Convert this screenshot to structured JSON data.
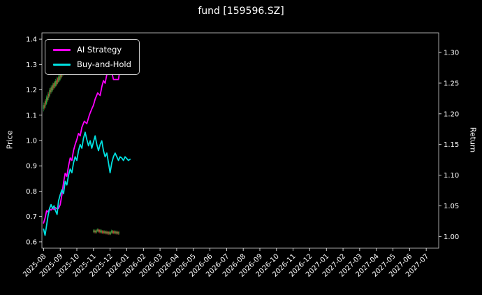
{
  "chart_data": {
    "type": "candlestick+line",
    "title": "fund [159596.SZ]",
    "background": "#000000",
    "spine_color": "#cfcfcf",
    "tick_color": "#ffffff",
    "legend_position": "upper-left",
    "axes": {
      "x": {
        "min": -0.1,
        "max": 23.75,
        "tick_values": [
          0,
          1,
          2,
          3,
          4,
          5,
          6,
          7,
          8,
          9,
          10,
          11,
          12,
          13,
          14,
          15,
          16,
          17,
          18,
          19,
          20,
          21,
          22,
          23
        ],
        "tick_labels": [
          "2025-08",
          "2025-09",
          "2025-10",
          "2025-11",
          "2025-12",
          "2026-01",
          "2026-02",
          "2026-03",
          "2026-04",
          "2026-05",
          "2026-06",
          "2026-07",
          "2026-08",
          "2026-09",
          "2026-10",
          "2026-11",
          "2026-12",
          "2027-01",
          "2027-02",
          "2027-03",
          "2027-04",
          "2027-05",
          "2027-06",
          "2027-07"
        ],
        "label_rotation_deg": 45
      },
      "left": {
        "label": "Price",
        "min": 0.575,
        "max": 1.425,
        "tick_values": [
          0.6,
          0.7,
          0.8,
          0.9,
          1.0,
          1.1,
          1.2,
          1.3,
          1.4
        ],
        "tick_labels": [
          "0.6",
          "0.7",
          "0.8",
          "0.9",
          "1.0",
          "1.1",
          "1.2",
          "1.3",
          "1.4"
        ]
      },
      "right": {
        "label": "Return",
        "min": 0.981,
        "max": 1.332,
        "tick_values": [
          1.0,
          1.05,
          1.1,
          1.15,
          1.2,
          1.25,
          1.3
        ],
        "tick_labels": [
          "1.00",
          "1.05",
          "1.10",
          "1.15",
          "1.20",
          "1.25",
          "1.30"
        ]
      }
    },
    "series": [
      {
        "name": "AI Strategy",
        "color": "#ff00ff",
        "axis": "right",
        "points": [
          [
            0,
            1.022
          ],
          [
            0.09,
            1.03
          ],
          [
            0.18,
            1.042
          ],
          [
            0.27,
            1.04
          ],
          [
            0.36,
            1.045
          ],
          [
            0.45,
            1.043
          ],
          [
            0.54,
            1.046
          ],
          [
            0.63,
            1.044
          ],
          [
            0.72,
            1.047
          ],
          [
            0.81,
            1.045
          ],
          [
            0.9,
            1.046
          ],
          [
            1.0,
            1.052
          ],
          [
            1.1,
            1.068
          ],
          [
            1.2,
            1.088
          ],
          [
            1.3,
            1.103
          ],
          [
            1.4,
            1.098
          ],
          [
            1.5,
            1.115
          ],
          [
            1.6,
            1.128
          ],
          [
            1.7,
            1.124
          ],
          [
            1.8,
            1.14
          ],
          [
            1.9,
            1.15
          ],
          [
            2.0,
            1.158
          ],
          [
            2.1,
            1.168
          ],
          [
            2.2,
            1.164
          ],
          [
            2.3,
            1.178
          ],
          [
            2.45,
            1.188
          ],
          [
            2.6,
            1.184
          ],
          [
            2.75,
            1.198
          ],
          [
            2.9,
            1.208
          ],
          [
            3.0,
            1.214
          ],
          [
            3.1,
            1.224
          ],
          [
            3.25,
            1.234
          ],
          [
            3.4,
            1.23
          ],
          [
            3.5,
            1.244
          ],
          [
            3.6,
            1.254
          ],
          [
            3.7,
            1.25
          ],
          [
            3.8,
            1.264
          ],
          [
            3.9,
            1.274
          ],
          [
            4.0,
            1.284
          ],
          [
            4.1,
            1.268
          ],
          [
            4.2,
            1.256
          ],
          [
            4.35,
            1.256
          ],
          [
            4.5,
            1.256
          ],
          [
            4.6,
            1.274
          ],
          [
            4.75,
            1.276
          ],
          [
            4.9,
            1.274
          ],
          [
            5.0,
            1.271
          ],
          [
            5.1,
            1.267
          ],
          [
            5.2,
            1.27
          ]
        ]
      },
      {
        "name": "Buy-and-Hold",
        "color": "#00e0e0",
        "axis": "right",
        "points": [
          [
            0,
            1.012
          ],
          [
            0.09,
            1.002
          ],
          [
            0.18,
            1.018
          ],
          [
            0.27,
            1.034
          ],
          [
            0.36,
            1.046
          ],
          [
            0.45,
            1.052
          ],
          [
            0.54,
            1.046
          ],
          [
            0.63,
            1.05
          ],
          [
            0.72,
            1.042
          ],
          [
            0.81,
            1.036
          ],
          [
            0.9,
            1.058
          ],
          [
            1.0,
            1.068
          ],
          [
            1.1,
            1.076
          ],
          [
            1.2,
            1.07
          ],
          [
            1.3,
            1.09
          ],
          [
            1.4,
            1.084
          ],
          [
            1.5,
            1.1
          ],
          [
            1.6,
            1.11
          ],
          [
            1.7,
            1.104
          ],
          [
            1.8,
            1.12
          ],
          [
            1.9,
            1.13
          ],
          [
            2.0,
            1.124
          ],
          [
            2.1,
            1.14
          ],
          [
            2.2,
            1.15
          ],
          [
            2.3,
            1.144
          ],
          [
            2.4,
            1.16
          ],
          [
            2.5,
            1.17
          ],
          [
            2.6,
            1.158
          ],
          [
            2.7,
            1.148
          ],
          [
            2.8,
            1.156
          ],
          [
            2.9,
            1.144
          ],
          [
            3.0,
            1.154
          ],
          [
            3.1,
            1.164
          ],
          [
            3.2,
            1.15
          ],
          [
            3.3,
            1.14
          ],
          [
            3.4,
            1.15
          ],
          [
            3.5,
            1.156
          ],
          [
            3.6,
            1.14
          ],
          [
            3.7,
            1.13
          ],
          [
            3.8,
            1.136
          ],
          [
            3.9,
            1.12
          ],
          [
            4.0,
            1.104
          ],
          [
            4.1,
            1.12
          ],
          [
            4.2,
            1.13
          ],
          [
            4.3,
            1.136
          ],
          [
            4.4,
            1.13
          ],
          [
            4.5,
            1.124
          ],
          [
            4.6,
            1.13
          ],
          [
            4.7,
            1.128
          ],
          [
            4.8,
            1.124
          ],
          [
            4.9,
            1.13
          ],
          [
            5.0,
            1.127
          ],
          [
            5.1,
            1.124
          ],
          [
            5.2,
            1.126
          ]
        ]
      }
    ],
    "candles": {
      "axis": "left",
      "up_color": "#1faa3c",
      "down_color": "#cc3333",
      "data": [
        [
          0.0,
          1.125,
          1.15,
          1.115,
          1.14
        ],
        [
          0.045,
          1.14,
          1.148,
          1.122,
          1.13
        ],
        [
          0.09,
          1.13,
          1.162,
          1.126,
          1.155
        ],
        [
          0.135,
          1.155,
          1.163,
          1.138,
          1.145
        ],
        [
          0.18,
          1.145,
          1.178,
          1.14,
          1.17
        ],
        [
          0.225,
          1.17,
          1.177,
          1.152,
          1.16
        ],
        [
          0.27,
          1.16,
          1.192,
          1.155,
          1.185
        ],
        [
          0.315,
          1.185,
          1.192,
          1.168,
          1.175
        ],
        [
          0.36,
          1.175,
          1.208,
          1.17,
          1.2
        ],
        [
          0.405,
          1.2,
          1.207,
          1.182,
          1.19
        ],
        [
          0.45,
          1.19,
          1.218,
          1.185,
          1.21
        ],
        [
          0.495,
          1.21,
          1.216,
          1.19,
          1.198
        ],
        [
          0.54,
          1.198,
          1.228,
          1.193,
          1.22
        ],
        [
          0.585,
          1.22,
          1.226,
          1.2,
          1.208
        ],
        [
          0.63,
          1.208,
          1.235,
          1.203,
          1.228
        ],
        [
          0.675,
          1.228,
          1.233,
          1.207,
          1.215
        ],
        [
          0.72,
          1.215,
          1.243,
          1.21,
          1.235
        ],
        [
          0.765,
          1.235,
          1.24,
          1.214,
          1.222
        ],
        [
          0.81,
          1.222,
          1.252,
          1.217,
          1.245
        ],
        [
          0.855,
          1.245,
          1.25,
          1.224,
          1.232
        ],
        [
          0.9,
          1.232,
          1.26,
          1.227,
          1.252
        ],
        [
          0.945,
          1.252,
          1.258,
          1.232,
          1.24
        ],
        [
          0.99,
          1.24,
          1.27,
          1.235,
          1.262
        ],
        [
          1.035,
          1.262,
          1.268,
          1.242,
          1.25
        ],
        [
          1.08,
          1.25,
          1.28,
          1.245,
          1.272
        ],
        [
          1.125,
          1.272,
          1.278,
          1.252,
          1.26
        ],
        [
          1.17,
          1.26,
          1.29,
          1.255,
          1.282
        ],
        [
          1.215,
          1.282,
          1.288,
          1.262,
          1.27
        ],
        [
          3.0,
          0.64,
          0.65,
          0.636,
          0.645
        ],
        [
          3.045,
          0.645,
          0.648,
          0.633,
          0.638
        ],
        [
          3.09,
          0.638,
          0.649,
          0.634,
          0.644
        ],
        [
          3.135,
          0.644,
          0.647,
          0.632,
          0.637
        ],
        [
          3.18,
          0.637,
          0.648,
          0.633,
          0.643
        ],
        [
          3.225,
          0.643,
          0.654,
          0.639,
          0.649
        ],
        [
          3.27,
          0.649,
          0.652,
          0.636,
          0.641
        ],
        [
          3.315,
          0.641,
          0.652,
          0.637,
          0.647
        ],
        [
          3.36,
          0.647,
          0.65,
          0.634,
          0.639
        ],
        [
          3.405,
          0.639,
          0.65,
          0.635,
          0.645
        ],
        [
          3.45,
          0.645,
          0.648,
          0.632,
          0.637
        ],
        [
          3.495,
          0.637,
          0.648,
          0.633,
          0.643
        ],
        [
          3.54,
          0.643,
          0.646,
          0.631,
          0.636
        ],
        [
          3.585,
          0.636,
          0.647,
          0.632,
          0.642
        ],
        [
          3.63,
          0.642,
          0.645,
          0.63,
          0.635
        ],
        [
          3.675,
          0.635,
          0.646,
          0.631,
          0.641
        ],
        [
          3.72,
          0.641,
          0.644,
          0.629,
          0.634
        ],
        [
          3.765,
          0.634,
          0.645,
          0.63,
          0.64
        ],
        [
          3.81,
          0.64,
          0.643,
          0.628,
          0.633
        ],
        [
          3.855,
          0.633,
          0.644,
          0.629,
          0.639
        ],
        [
          3.9,
          0.639,
          0.642,
          0.627,
          0.632
        ],
        [
          3.945,
          0.632,
          0.643,
          0.628,
          0.638
        ],
        [
          3.99,
          0.638,
          0.641,
          0.626,
          0.631
        ],
        [
          4.035,
          0.631,
          0.642,
          0.627,
          0.637
        ],
        [
          4.08,
          0.637,
          0.648,
          0.633,
          0.643
        ],
        [
          4.125,
          0.643,
          0.646,
          0.631,
          0.636
        ],
        [
          4.17,
          0.636,
          0.647,
          0.632,
          0.642
        ],
        [
          4.215,
          0.642,
          0.645,
          0.63,
          0.635
        ],
        [
          4.26,
          0.635,
          0.646,
          0.631,
          0.641
        ],
        [
          4.305,
          0.641,
          0.644,
          0.629,
          0.634
        ],
        [
          4.35,
          0.634,
          0.645,
          0.63,
          0.64
        ],
        [
          4.395,
          0.64,
          0.643,
          0.628,
          0.633
        ],
        [
          4.44,
          0.633,
          0.644,
          0.629,
          0.639
        ],
        [
          4.485,
          0.639,
          0.642,
          0.627,
          0.632
        ],
        [
          4.53,
          0.632,
          0.643,
          0.628,
          0.638
        ]
      ]
    }
  }
}
